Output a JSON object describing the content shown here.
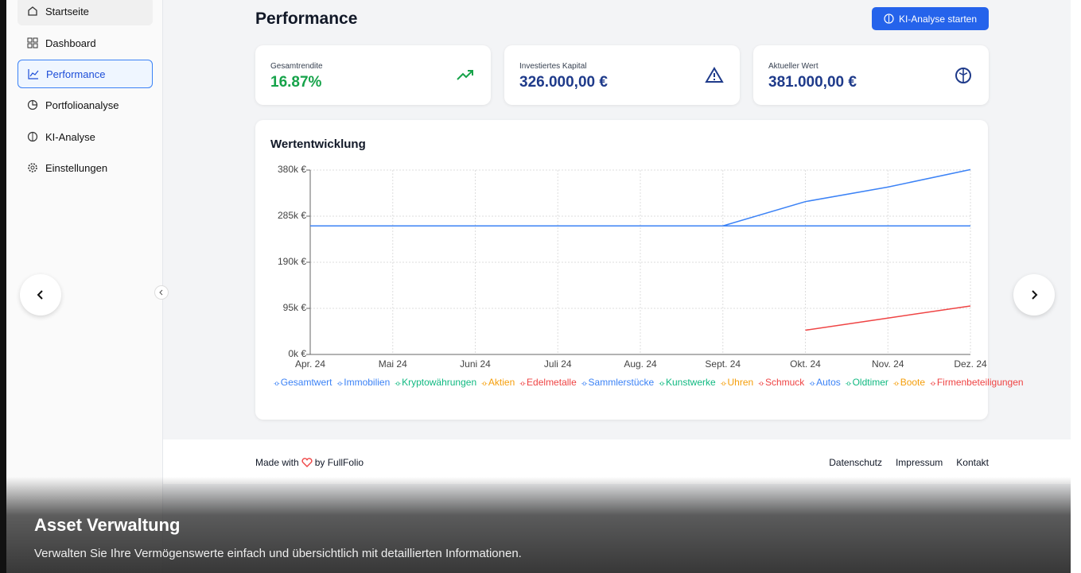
{
  "sidebar": {
    "items": [
      "Startseite",
      "Dashboard",
      "Performance",
      "Portfolioanalyse",
      "KI-Analyse",
      "Einstellungen"
    ],
    "active": 2
  },
  "header": {
    "title": "Performance",
    "button": "KI-Analyse starten"
  },
  "cards": [
    {
      "label": "Gesamtrendite",
      "value": "16.87%"
    },
    {
      "label": "Investiertes Kapital",
      "value": "326.000,00 €"
    },
    {
      "label": "Aktueller Wert",
      "value": "381.000,00 €"
    }
  ],
  "chart_data": {
    "type": "line",
    "title": "Wertentwicklung",
    "categories": [
      "Apr. 24",
      "Mai 24",
      "Juni 24",
      "Juli 24",
      "Aug. 24",
      "Sept. 24",
      "Okt. 24",
      "Nov. 24",
      "Dez. 24"
    ],
    "ylim": [
      0,
      380000
    ],
    "yticks": [
      {
        "value": 0,
        "label": "0k €"
      },
      {
        "value": 95000,
        "label": "95k €"
      },
      {
        "value": 190000,
        "label": "190k €"
      },
      {
        "value": 285000,
        "label": "285k €"
      },
      {
        "value": 380000,
        "label": "380k €"
      }
    ],
    "grid": true,
    "series": [
      {
        "name": "Gesamtwert",
        "color": "#3b82f6",
        "values": [
          265000,
          265000,
          265000,
          265000,
          265000,
          265000,
          315000,
          345000,
          381000
        ]
      },
      {
        "name": "Immobilien",
        "color": "#3b82f6",
        "values": [
          265000,
          265000,
          265000,
          265000,
          265000,
          265000,
          265000,
          265000,
          265000
        ]
      },
      {
        "name": "Kryptowährungen",
        "color": "#10b981",
        "values": [
          null,
          null,
          null,
          null,
          null,
          null,
          null,
          null,
          null
        ]
      },
      {
        "name": "Aktien",
        "color": "#f59e0b",
        "values": [
          null,
          null,
          null,
          null,
          null,
          null,
          null,
          null,
          null
        ]
      },
      {
        "name": "Edelmetalle",
        "color": "#ef4444",
        "values": [
          null,
          null,
          null,
          null,
          null,
          null,
          50000,
          75000,
          100000
        ]
      },
      {
        "name": "Sammlerstücke",
        "color": "#3b82f6",
        "values": [
          null,
          null,
          null,
          null,
          null,
          null,
          null,
          null,
          null
        ]
      },
      {
        "name": "Kunstwerke",
        "color": "#10b981",
        "values": [
          null,
          null,
          null,
          null,
          null,
          null,
          null,
          null,
          null
        ]
      },
      {
        "name": "Uhren",
        "color": "#f59e0b",
        "values": [
          null,
          null,
          null,
          null,
          null,
          null,
          null,
          null,
          null
        ]
      },
      {
        "name": "Schmuck",
        "color": "#ef4444",
        "values": [
          null,
          null,
          null,
          null,
          null,
          null,
          null,
          null,
          null
        ]
      },
      {
        "name": "Autos",
        "color": "#3b82f6",
        "values": [
          null,
          null,
          null,
          null,
          null,
          null,
          null,
          null,
          null
        ]
      },
      {
        "name": "Oldtimer",
        "color": "#10b981",
        "values": [
          null,
          null,
          null,
          null,
          null,
          null,
          null,
          null,
          null
        ]
      },
      {
        "name": "Boote",
        "color": "#f59e0b",
        "values": [
          null,
          null,
          null,
          null,
          null,
          null,
          null,
          null,
          null
        ]
      },
      {
        "name": "Firmenbeteiligungen",
        "color": "#ef4444",
        "values": [
          null,
          null,
          null,
          null,
          null,
          null,
          null,
          null,
          null
        ]
      }
    ]
  },
  "footer": {
    "made_with": "Made with",
    "by": "by FullFolio",
    "links": [
      "Datenschutz",
      "Impressum",
      "Kontakt"
    ]
  },
  "caption": {
    "title": "Asset Verwaltung",
    "text": "Verwalten Sie Ihre Vermögenswerte einfach und übersichtlich mit detaillierten Informationen."
  }
}
